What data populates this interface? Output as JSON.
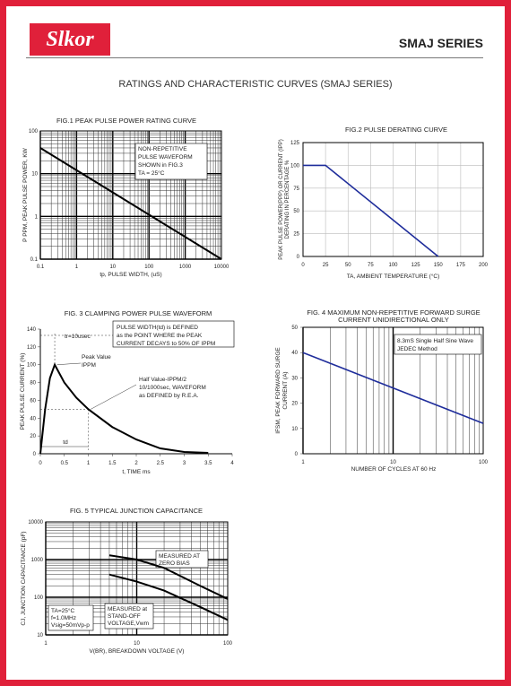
{
  "header": {
    "logo": "Slkor",
    "series": "SMAJ SERIES",
    "title": "RATINGS AND CHARACTERISTIC CURVES (SMAJ SERIES)"
  },
  "chart_data": [
    {
      "id": "fig1",
      "type": "line",
      "title": "FIG.1 PEAK PULSE POWER RATING CURVE",
      "xlabel": "tp, PULSE WIDTH, (uS)",
      "ylabel": "P PPM, PEAK PULSE POWER, KW",
      "xscale": "log",
      "yscale": "log",
      "xlim": [
        0.1,
        10000
      ],
      "ylim": [
        0.1,
        100
      ],
      "xticks": [
        "0.1",
        "1",
        "10",
        "100",
        "1000",
        "10000"
      ],
      "yticks": [
        "0.1",
        "1",
        "10",
        "100"
      ],
      "annotation": [
        "NON-REPETITIVE",
        "PULSE WAVEFORM",
        "SHOWN in FIG.3",
        "TA = 25°C"
      ],
      "series": [
        {
          "x": [
            0.1,
            10000
          ],
          "y": [
            40,
            0.1
          ]
        }
      ]
    },
    {
      "id": "fig2",
      "type": "line",
      "title": "FIG.2 PULSE DERATING CURVE",
      "xlabel": "TA, AMBIENT TEMPERATURE (°C)",
      "ylabel": [
        "PEAK PULSE POWER(PPP) OR CURRENT (IPP)",
        "DERATING IN PERCENTAGE %"
      ],
      "xlim": [
        0,
        200
      ],
      "ylim": [
        0,
        125
      ],
      "xticks": [
        "0",
        "25",
        "50",
        "75",
        "100",
        "125",
        "150",
        "175",
        "200"
      ],
      "yticks": [
        "0",
        "25",
        "50",
        "75",
        "100",
        "125"
      ],
      "series": [
        {
          "x": [
            0,
            25,
            150
          ],
          "y": [
            100,
            100,
            0
          ]
        }
      ]
    },
    {
      "id": "fig3",
      "type": "line",
      "title": "FIG. 3 CLAMPING POWER PULSE WAVEFORM",
      "xlabel": "t, TIME ms",
      "ylabel": "PEAK PULSE CURRENT (%)",
      "xlim": [
        0,
        4
      ],
      "ylim": [
        0,
        140
      ],
      "xticks": [
        "0",
        "0.5",
        "1",
        "1.5",
        "2",
        "2.5",
        "3",
        "3.5",
        "4"
      ],
      "yticks": [
        "0",
        "20",
        "40",
        "60",
        "80",
        "100",
        "120",
        "140"
      ],
      "annotations": {
        "tr": "tr=10usec",
        "pulse": [
          "PULSE WIDTH(td) is DEFINED",
          "as the POINT WHERE the PEAK",
          "CURRENT DECAYS to 50% OF IPPM"
        ],
        "peak": [
          "Peak Value",
          "IPPM"
        ],
        "half": [
          "Half Value-IPPM/2",
          "10/1000sec, WAVEFORM",
          "as DEFINED by R.E.A."
        ],
        "td": "td"
      },
      "series": [
        {
          "x": [
            0,
            0.1,
            0.2,
            0.3,
            0.5,
            0.75,
            1,
            1.5,
            2,
            2.5,
            3,
            3.5
          ],
          "y": [
            0,
            50,
            85,
            100,
            80,
            63,
            50,
            30,
            16,
            6,
            2,
            1
          ]
        }
      ]
    },
    {
      "id": "fig4",
      "type": "line",
      "title": [
        "FIG. 4 MAXIMUM NON-REPETITIVE FORWARD SURGE",
        "CURRENT UNIDIRECTIONAL ONLY"
      ],
      "xlabel": "NUMBER OF CYCLES AT 60 Hz",
      "ylabel": [
        "IFSM, PEAK FORWARD SURGE",
        "CURRENT (A)"
      ],
      "xscale": "log",
      "xlim": [
        1,
        100
      ],
      "ylim": [
        0,
        50
      ],
      "xticks": [
        "1",
        "10",
        "100"
      ],
      "yticks": [
        "0",
        "10",
        "20",
        "30",
        "40",
        "50"
      ],
      "annotation": [
        "8.3mS Single Half Sine Wave",
        "JEDEC Method"
      ],
      "series": [
        {
          "x": [
            1,
            100
          ],
          "y": [
            40,
            12
          ]
        }
      ]
    },
    {
      "id": "fig5",
      "type": "line",
      "title": "FIG. 5 TYPICAL JUNCTION CAPACITANCE",
      "xlabel": "V(BR), BREAKDOWN VOLTAGE (V)",
      "ylabel": "CJ, JUNCTION CAPACITANCE (pF)",
      "xscale": "log",
      "yscale": "log",
      "xlim": [
        1,
        100
      ],
      "ylim": [
        10,
        10000
      ],
      "xticks": [
        "1",
        "10",
        "100"
      ],
      "yticks": [
        "10",
        "100",
        "1000",
        "10000"
      ],
      "annotations": {
        "zero": [
          "MEASURED AT",
          "ZERO BIAS"
        ],
        "standoff": [
          "MEASURED at",
          "STAND-OFF",
          "VOLTAGE,Vwm"
        ],
        "conditions": [
          "TA=25°C",
          "f=1.0MHz",
          "Vsig=50mVp-p"
        ]
      },
      "series": [
        {
          "x": [
            5,
            10,
            20,
            50,
            100
          ],
          "y": [
            1300,
            1000,
            600,
            200,
            90
          ]
        },
        {
          "x": [
            5,
            10,
            20,
            50,
            100
          ],
          "y": [
            400,
            260,
            150,
            55,
            25
          ]
        }
      ]
    }
  ]
}
